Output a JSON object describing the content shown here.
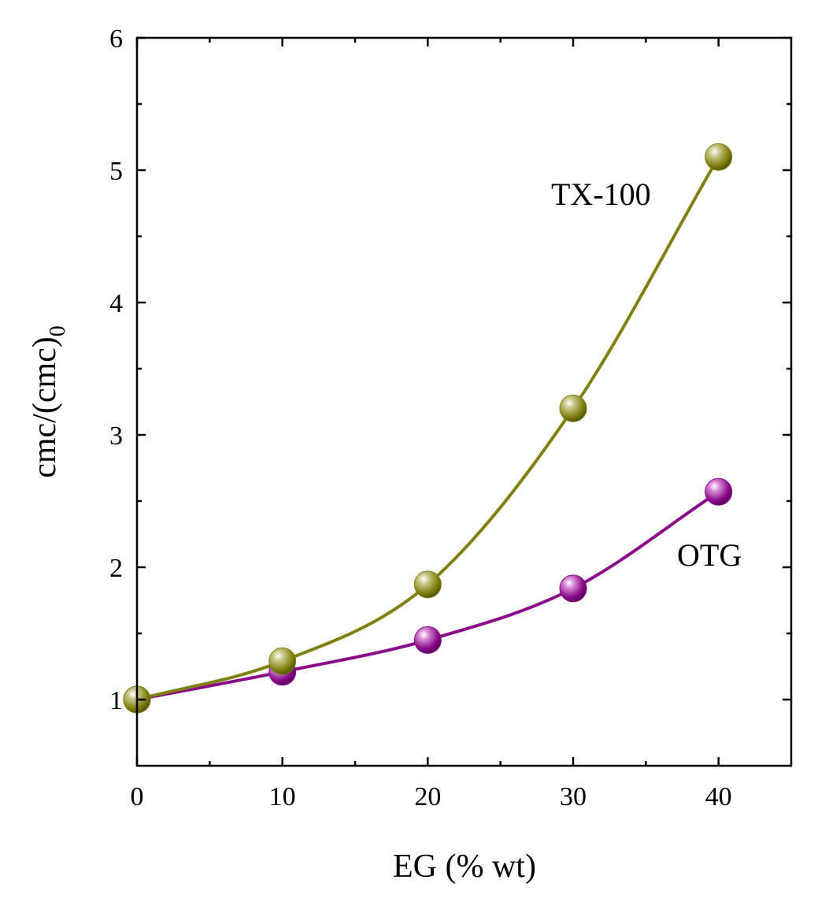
{
  "chart_data": {
    "type": "line",
    "xlabel": "EG (% wt)",
    "ylabel": "cmc/(cmc)",
    "ylabel_subscript": "0",
    "xlim": [
      0,
      45
    ],
    "ylim": [
      0.5,
      6
    ],
    "x_ticks": [
      0,
      10,
      20,
      30,
      40
    ],
    "x_minor_ticks": [
      5,
      15,
      25,
      35
    ],
    "y_ticks": [
      1,
      2,
      3,
      4,
      5,
      6
    ],
    "y_minor_ticks": [
      1.5,
      2.5,
      3.5,
      4.5,
      5.5
    ],
    "grid": false,
    "series": [
      {
        "name": "TX-100",
        "color": "#808010",
        "x": [
          0,
          10,
          20,
          30,
          40
        ],
        "y": [
          1.0,
          1.29,
          1.87,
          3.2,
          5.1
        ]
      },
      {
        "name": "OTG",
        "color": "#8a0a8a",
        "x": [
          0,
          10,
          20,
          30,
          40
        ],
        "y": [
          1.0,
          1.21,
          1.45,
          1.84,
          2.57
        ]
      }
    ]
  }
}
